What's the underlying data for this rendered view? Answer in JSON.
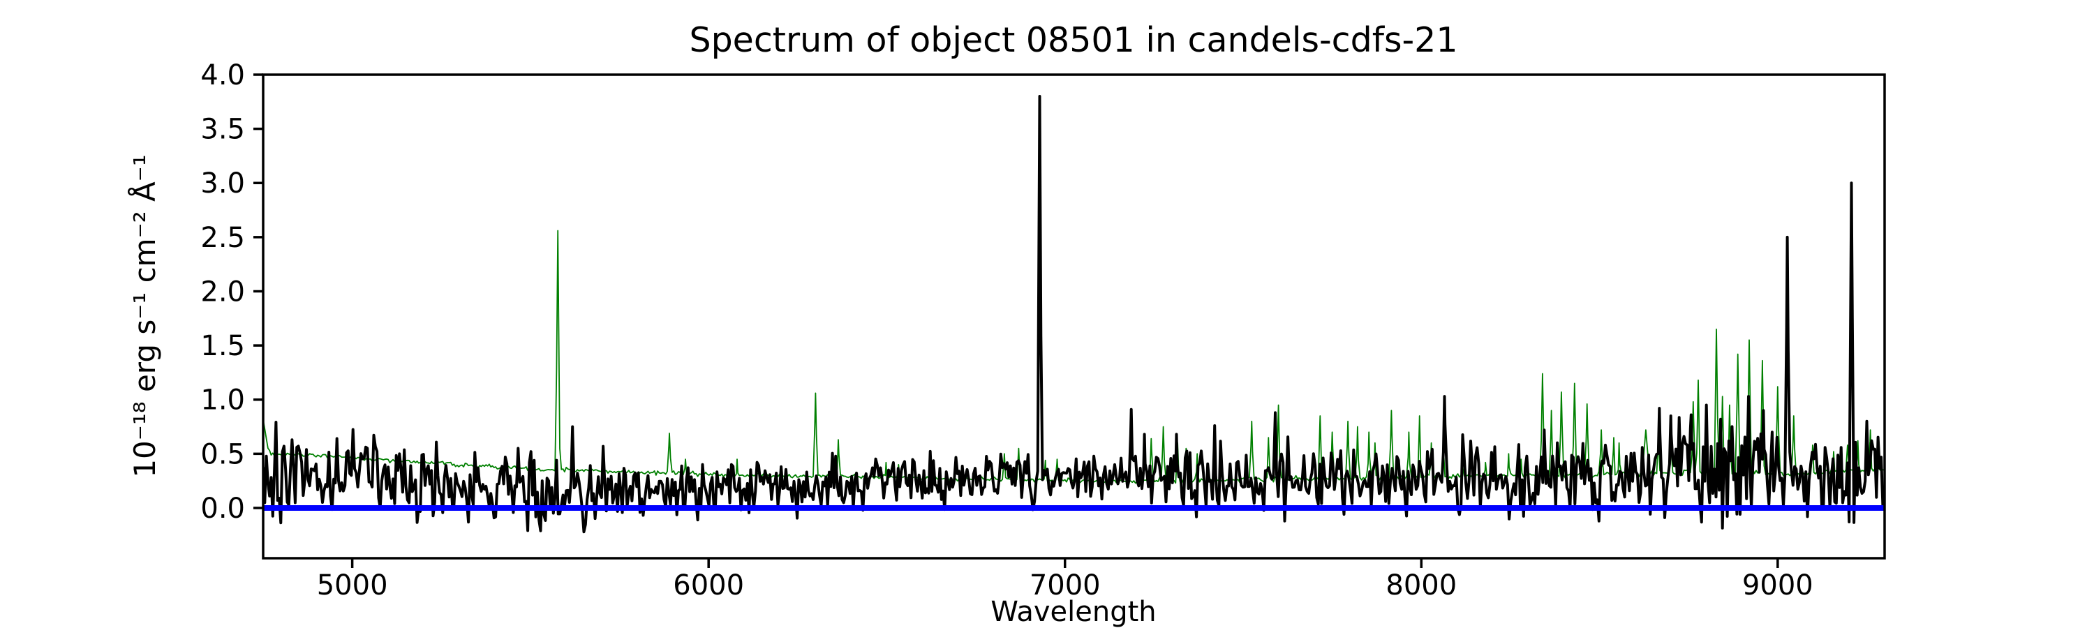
{
  "figure_title": "Spectrum of object 08501 in candels-cdfs-21",
  "axis": {
    "xlabel": "Wavelength",
    "ylabel": "10⁻¹⁸ erg s⁻¹ cm⁻² Å⁻¹"
  },
  "chart_data": {
    "type": "line",
    "title": "Spectrum of object 08501 in candels-cdfs-21",
    "xlabel": "Wavelength",
    "ylabel": "10^-18 erg s^-1 cm^-2 A^-1",
    "xlim": [
      4750,
      9300
    ],
    "ylim": [
      -0.464,
      4.0
    ],
    "xticks": [
      5000,
      6000,
      7000,
      8000,
      9000
    ],
    "yticks": [
      0.0,
      0.5,
      1.0,
      1.5,
      2.0,
      2.5,
      3.0,
      3.5,
      4.0
    ],
    "grid": false,
    "legend": false,
    "colors": {
      "observed": "#000000",
      "sky": "#008000",
      "zero": "#0000ff"
    },
    "series": [
      {
        "name": "sky-noise-spectrum",
        "color": "#008000",
        "linewidth": 1.8,
        "sample_step": 4.5,
        "seed": 77,
        "baseline": [
          [
            4750,
            0.82
          ],
          [
            4756,
            0.7
          ],
          [
            4763,
            0.55
          ],
          [
            4775,
            0.5
          ],
          [
            4900,
            0.49
          ],
          [
            5100,
            0.44
          ],
          [
            5300,
            0.4
          ],
          [
            5500,
            0.36
          ],
          [
            5700,
            0.34
          ],
          [
            5900,
            0.32
          ],
          [
            6100,
            0.3
          ],
          [
            6400,
            0.29
          ],
          [
            6700,
            0.27
          ],
          [
            7000,
            0.25
          ],
          [
            7300,
            0.25
          ],
          [
            7600,
            0.27
          ],
          [
            7900,
            0.28
          ],
          [
            8200,
            0.3
          ],
          [
            8500,
            0.31
          ],
          [
            8800,
            0.33
          ],
          [
            9100,
            0.32
          ],
          [
            9300,
            0.36
          ]
        ],
        "noise_amp": [
          [
            4750,
            0.012
          ],
          [
            9300,
            0.018
          ]
        ],
        "peaks": [
          [
            5577,
            2.56,
            7
          ],
          [
            5890,
            0.69,
            9
          ],
          [
            5935,
            0.45,
            8
          ],
          [
            6080,
            0.45,
            7
          ],
          [
            6300,
            1.06,
            7
          ],
          [
            6364,
            0.63,
            7
          ],
          [
            6498,
            0.42,
            7
          ],
          [
            6533,
            0.4,
            6
          ],
          [
            6830,
            0.5,
            8
          ],
          [
            6870,
            0.55,
            7
          ],
          [
            6945,
            0.44,
            6
          ],
          [
            6978,
            0.45,
            6
          ],
          [
            7242,
            0.64,
            7
          ],
          [
            7276,
            0.75,
            7
          ],
          [
            7316,
            0.6,
            7
          ],
          [
            7340,
            0.55,
            6
          ],
          [
            7371,
            0.5,
            6
          ],
          [
            7524,
            0.8,
            7
          ],
          [
            7571,
            0.65,
            6
          ],
          [
            7599,
            0.95,
            7
          ],
          [
            7716,
            0.85,
            7
          ],
          [
            7750,
            0.7,
            7
          ],
          [
            7794,
            0.8,
            7
          ],
          [
            7821,
            0.75,
            6
          ],
          [
            7853,
            0.7,
            6
          ],
          [
            7870,
            0.6,
            6
          ],
          [
            7916,
            0.9,
            7
          ],
          [
            7965,
            0.7,
            6
          ],
          [
            7995,
            0.85,
            6
          ],
          [
            8028,
            0.6,
            6
          ],
          [
            8062,
            0.55,
            6
          ],
          [
            8115,
            0.45,
            6
          ],
          [
            8180,
            0.42,
            6
          ],
          [
            8245,
            0.5,
            6
          ],
          [
            8280,
            0.45,
            6
          ],
          [
            8340,
            1.24,
            7
          ],
          [
            8365,
            0.9,
            6
          ],
          [
            8393,
            1.07,
            7
          ],
          [
            8430,
            1.15,
            7
          ],
          [
            8465,
            0.96,
            7
          ],
          [
            8505,
            0.72,
            7
          ],
          [
            8540,
            0.65,
            6
          ],
          [
            8555,
            0.6,
            6
          ],
          [
            8630,
            0.72,
            18
          ],
          [
            8665,
            0.65,
            8
          ],
          [
            8700,
            0.62,
            8
          ],
          [
            8763,
            0.98,
            7
          ],
          [
            8777,
            1.18,
            7
          ],
          [
            8828,
            1.65,
            7
          ],
          [
            8845,
            1.03,
            6
          ],
          [
            8865,
            0.95,
            6
          ],
          [
            8888,
            1.42,
            7
          ],
          [
            8920,
            1.55,
            7
          ],
          [
            8957,
            1.36,
            7
          ],
          [
            9000,
            1.12,
            7
          ],
          [
            9045,
            0.85,
            7
          ],
          [
            9098,
            0.58,
            7
          ],
          [
            9157,
            0.52,
            7
          ],
          [
            9196,
            0.58,
            7
          ],
          [
            9225,
            0.62,
            7
          ],
          [
            9260,
            0.72,
            7
          ],
          [
            9283,
            0.55,
            6
          ]
        ]
      },
      {
        "name": "observed-spectrum",
        "color": "#000000",
        "linewidth": 4,
        "sample_step": 4.5,
        "seed": 20,
        "baseline": [
          [
            4750,
            0.28
          ],
          [
            4900,
            0.32
          ],
          [
            5100,
            0.28
          ],
          [
            5300,
            0.2
          ],
          [
            5600,
            0.14
          ],
          [
            5900,
            0.18
          ],
          [
            6200,
            0.22
          ],
          [
            6500,
            0.25
          ],
          [
            6800,
            0.28
          ],
          [
            7100,
            0.3
          ],
          [
            7400,
            0.27
          ],
          [
            7700,
            0.27
          ],
          [
            8000,
            0.29
          ],
          [
            8300,
            0.27
          ],
          [
            8600,
            0.29
          ],
          [
            8900,
            0.31
          ],
          [
            9100,
            0.29
          ],
          [
            9300,
            0.36
          ]
        ],
        "noise_amp": [
          [
            4750,
            0.27
          ],
          [
            5000,
            0.27
          ],
          [
            5300,
            0.24
          ],
          [
            5600,
            0.21
          ],
          [
            5900,
            0.18
          ],
          [
            6200,
            0.17
          ],
          [
            6500,
            0.16
          ],
          [
            6800,
            0.15
          ],
          [
            7100,
            0.17
          ],
          [
            7400,
            0.2
          ],
          [
            7700,
            0.23
          ],
          [
            8000,
            0.21
          ],
          [
            8300,
            0.24
          ],
          [
            8600,
            0.28
          ],
          [
            8900,
            0.28
          ],
          [
            9150,
            0.26
          ],
          [
            9300,
            0.28
          ]
        ],
        "peaks": [
          [
            5618,
            0.75,
            6
          ],
          [
            6929,
            3.8,
            6
          ],
          [
            7186,
            0.91,
            6
          ],
          [
            7223,
            0.68,
            5
          ],
          [
            7313,
            0.68,
            5
          ],
          [
            7420,
            0.76,
            5
          ],
          [
            7590,
            0.88,
            6
          ],
          [
            8065,
            1.03,
            6
          ],
          [
            8345,
            0.72,
            5
          ],
          [
            8668,
            0.92,
            6
          ],
          [
            8700,
            0.85,
            5
          ],
          [
            8757,
            0.86,
            5
          ],
          [
            8800,
            0.95,
            6
          ],
          [
            8840,
            0.82,
            5
          ],
          [
            8918,
            1.03,
            6
          ],
          [
            8960,
            0.9,
            5
          ],
          [
            9027,
            2.5,
            6
          ],
          [
            9207,
            3.0,
            6
          ],
          [
            9250,
            0.8,
            5
          ]
        ]
      },
      {
        "name": "zero-flux-line",
        "color": "#0000ff",
        "linewidth": 8,
        "constant": 0
      }
    ]
  }
}
